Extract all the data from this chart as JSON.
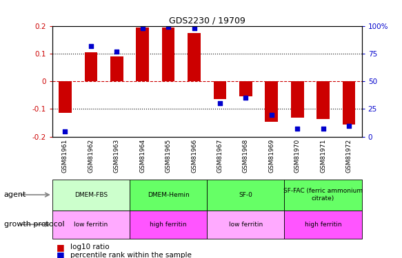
{
  "title": "GDS2230 / 19709",
  "samples": [
    "GSM81961",
    "GSM81962",
    "GSM81963",
    "GSM81964",
    "GSM81965",
    "GSM81966",
    "GSM81967",
    "GSM81968",
    "GSM81969",
    "GSM81970",
    "GSM81971",
    "GSM81972"
  ],
  "log10_ratio": [
    -0.115,
    0.105,
    0.09,
    0.195,
    0.195,
    0.175,
    -0.065,
    -0.055,
    -0.145,
    -0.13,
    -0.135,
    -0.155
  ],
  "percentile_rank": [
    5,
    82,
    77,
    98,
    99,
    98,
    30,
    35,
    20,
    7,
    7,
    10
  ],
  "ylim": [
    -0.2,
    0.2
  ],
  "yticks_left": [
    -0.2,
    -0.1,
    0.0,
    0.1,
    0.2
  ],
  "yticks_right": [
    0,
    25,
    50,
    75,
    100
  ],
  "bar_color": "#cc0000",
  "dot_color": "#0000cc",
  "hline_color": "#cc0000",
  "dotted_color": "#000000",
  "agent_boundaries": [
    [
      0,
      3,
      "DMEM-FBS",
      "#ccffcc"
    ],
    [
      3,
      6,
      "DMEM-Hemin",
      "#66ff66"
    ],
    [
      6,
      9,
      "SF-0",
      "#66ff66"
    ],
    [
      9,
      12,
      "SF-FAC (ferric ammonium\ncitrate)",
      "#66ff66"
    ]
  ],
  "growth_boundaries": [
    [
      0,
      3,
      "low ferritin",
      "#ffaaff"
    ],
    [
      3,
      6,
      "high ferritin",
      "#ff55ff"
    ],
    [
      6,
      9,
      "low ferritin",
      "#ffaaff"
    ],
    [
      9,
      12,
      "high ferritin",
      "#ff55ff"
    ]
  ],
  "background_color": "#ffffff"
}
